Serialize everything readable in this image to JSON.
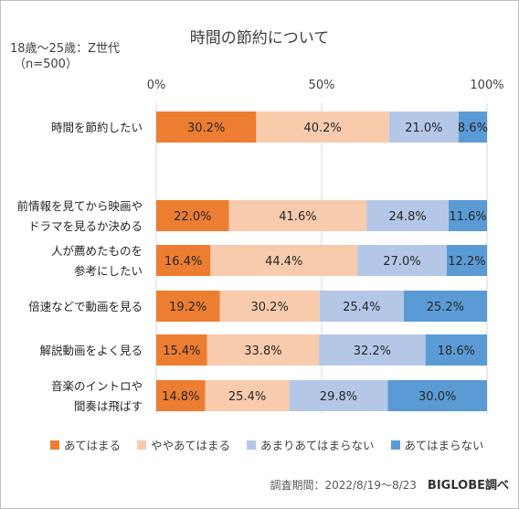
{
  "title": "時間の節約について",
  "subtitle_line1": "18歳～25歳：Z世代",
  "subtitle_line2": "（n=500）",
  "footer": {
    "period": "調査期間：2022/8/19～8/23",
    "brand": "BIGLOBE調べ"
  },
  "colors": {
    "agree": "#ed7d31",
    "somewhat_agree": "#f8cbad",
    "somewhat_disagree": "#b4c7e7",
    "disagree": "#5b9bd5",
    "grid": "#d9d9d9",
    "text": "#404040"
  },
  "chart_data": {
    "type": "bar",
    "orientation": "horizontal",
    "stacked": true,
    "percent": true,
    "xlim": [
      0,
      100
    ],
    "x_ticks": [
      "0%",
      "50%",
      "100%"
    ],
    "grid": true,
    "legend_position": "bottom",
    "categories": [
      [
        "時間を節約したい"
      ],
      [
        "前情報を見てから映画や",
        "ドラマを見るか決める"
      ],
      [
        "人が薦めたものを",
        "参考にしたい"
      ],
      [
        "倍速などで動画を見る"
      ],
      [
        "解説動画をよく見る"
      ],
      [
        "音楽のイントロや",
        "間奏は飛ばす"
      ]
    ],
    "series": [
      {
        "name": "あてはまる",
        "values": [
          30.2,
          22.0,
          16.4,
          19.2,
          15.4,
          14.8
        ]
      },
      {
        "name": "ややあてはまる",
        "values": [
          40.2,
          41.6,
          44.4,
          30.2,
          33.8,
          25.4
        ]
      },
      {
        "name": "あまりあてはまらない",
        "values": [
          21.0,
          24.8,
          27.0,
          25.4,
          32.2,
          29.8
        ]
      },
      {
        "name": "あてはまらない",
        "values": [
          8.6,
          11.6,
          12.2,
          25.2,
          18.6,
          30.0
        ]
      }
    ]
  }
}
